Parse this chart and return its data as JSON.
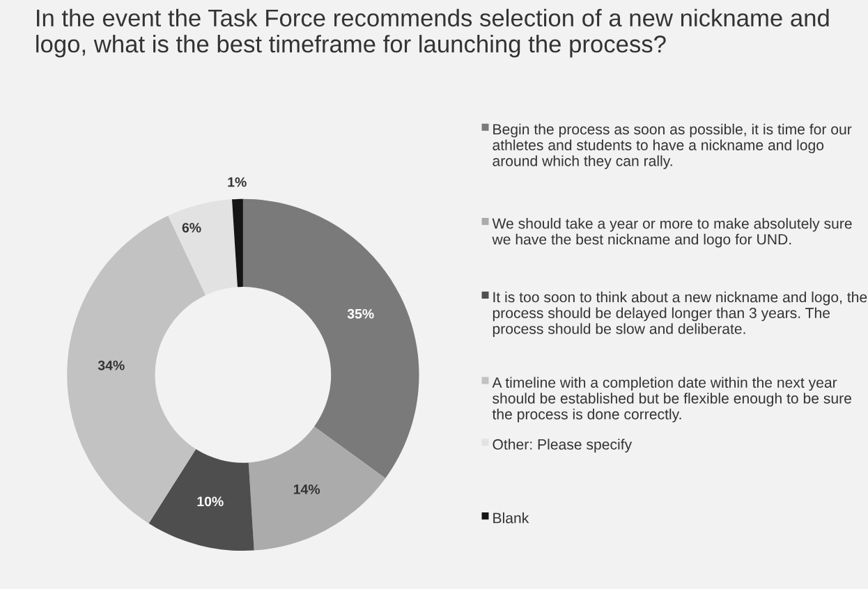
{
  "chart_data": {
    "type": "donut",
    "title": "In the event the Task Force recommends selection of a new nickname and logo, what is the best timeframe for launching the process?",
    "categories": [
      "Begin the process as soon as possible, it is time for our athletes and students to have a nickname and logo around which they can rally.",
      "We should take a year or more to make absolutely sure we have the best nickname and logo for UND.",
      "It is too soon to think about a new nickname and logo, the process should be delayed longer than 3 years. The process should be slow and deliberate.",
      "A timeline with a completion date within the next year should be established but be flexible enough to be sure the process is done correctly.",
      "Other: Please specify",
      "Blank"
    ],
    "values": [
      35,
      14,
      10,
      34,
      6,
      1
    ],
    "colors": [
      "#7a7a7a",
      "#ababab",
      "#4e4e4e",
      "#c2c2c2",
      "#e2e2e2",
      "#151515"
    ],
    "value_labels": [
      "35%",
      "14%",
      "10%",
      "34%",
      "6%",
      "1%"
    ],
    "legend": "right"
  }
}
